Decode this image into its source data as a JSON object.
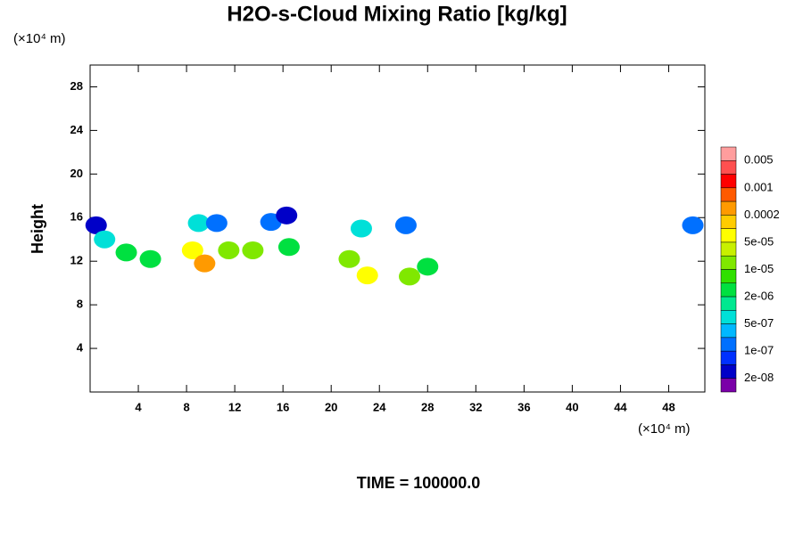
{
  "chart_data": {
    "type": "contour",
    "title": "H2O-s-Cloud Mixing Ratio [kg/kg]",
    "y_unit_label": "(×10⁴ m)",
    "x_unit_label": "(×10⁴ m)",
    "ylabel": "Height",
    "footer": "TIME = 100000.0",
    "xlim": [
      0,
      51
    ],
    "ylim": [
      0,
      30
    ],
    "xticks": [
      4,
      8,
      12,
      16,
      20,
      24,
      28,
      32,
      36,
      40,
      44,
      48
    ],
    "yticks": [
      4,
      8,
      12,
      16,
      20,
      24,
      28
    ],
    "colorbar": {
      "colors": [
        "#ff9d9d",
        "#ff5050",
        "#ff0000",
        "#ff5a00",
        "#ff9a00",
        "#ffcc00",
        "#ffff00",
        "#c8f000",
        "#80e800",
        "#30e000",
        "#00e040",
        "#00e890",
        "#00e0d8",
        "#00b8ff",
        "#0070ff",
        "#0030ff",
        "#0000c8",
        "#7a00a8"
      ],
      "levels": [
        0.005,
        0.001,
        0.0002,
        {
          "value": 5e-05,
          "label": "5e-05"
        },
        {
          "value": 1e-05,
          "label": "1e-05"
        },
        {
          "value": 2e-06,
          "label": "2e-06"
        },
        {
          "value": 5e-07,
          "label": "5e-07"
        },
        {
          "value": 1e-07,
          "label": "1e-07"
        },
        {
          "value": 2e-08,
          "label": "2e-08"
        }
      ]
    },
    "x": [
      0.5,
      1.2,
      3.0,
      8.5,
      9.5,
      9.0,
      10.5,
      11.5,
      15.0,
      16.3,
      13.5,
      16.5,
      22.5,
      21.5,
      23.0,
      26.5,
      28.0,
      26.2,
      50.0,
      5.0
    ],
    "y": [
      15.3,
      14.0,
      12.8,
      13.0,
      11.8,
      15.5,
      15.5,
      13.0,
      15.6,
      16.2,
      13.0,
      13.3,
      15.0,
      12.2,
      10.7,
      10.6,
      11.5,
      15.3,
      15.3,
      12.2
    ],
    "values": [
      2e-08,
      1e-06,
      5e-06,
      5e-05,
      0.0002,
      5e-07,
      1e-07,
      2e-05,
      1e-07,
      2e-08,
      1e-05,
      5e-06,
      5e-07,
      2e-05,
      0.0001,
      1e-05,
      2e-06,
      1e-07,
      1e-07,
      5e-06
    ]
  }
}
